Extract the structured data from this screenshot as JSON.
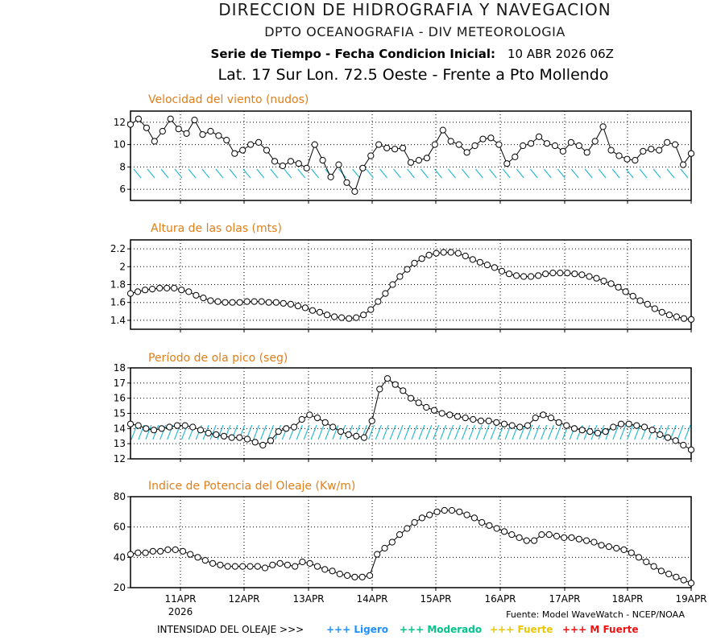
{
  "header": {
    "line1": "DIRECCION DE HIDROGRAFIA Y NAVEGACION",
    "line2": "DPTO OCEANOGRAFIA - DIV METEOROLOGIA",
    "line3_label": "Serie de Tiempo - Fecha Condicion Inicial:",
    "line3_date": "10 ABR 2026 06Z",
    "line4": "Lat. 17 Sur  Lon. 72.5 Oeste - Frente a Pto Mollendo"
  },
  "colors": {
    "title_orange": "#e07f1a",
    "date_blue": "#1f4fe0",
    "arrow_cyan": "#22b8d0",
    "ligero": "#1e90ff",
    "moderado": "#00c48a",
    "fuerte": "#e8c800",
    "mfuerte": "#ee1111"
  },
  "footer": {
    "source": "Fuente: Model WaveWatch - NCEP/NOAA",
    "legend_label": "INTENSIDAD DEL OLEAJE >>>",
    "legend_items": [
      "+++ Ligero",
      "+++ Moderado",
      "+++ Fuerte",
      "+++ M Fuerte"
    ]
  },
  "chart_data": [
    {
      "type": "line",
      "title": "Velocidad del viento (nudos)",
      "x_tick_labels": [
        "11APR",
        "12APR",
        "13APR",
        "14APR",
        "15APR",
        "16APR",
        "17APR",
        "18APR",
        "19APR"
      ],
      "x_year_label": "2026",
      "ylim": [
        5,
        13
      ],
      "y_ticks": [
        6,
        8,
        10,
        12
      ],
      "values": [
        11.8,
        12.3,
        11.5,
        10.3,
        11.2,
        12.3,
        11.4,
        11.0,
        12.2,
        10.9,
        11.2,
        10.8,
        10.4,
        9.2,
        9.5,
        10.0,
        10.2,
        9.5,
        8.5,
        8.1,
        8.5,
        8.3,
        7.9,
        10.0,
        8.6,
        7.1,
        8.2,
        6.6,
        5.8,
        7.9,
        9.0,
        10.0,
        9.7,
        9.6,
        9.7,
        8.4,
        8.6,
        8.8,
        10.0,
        11.3,
        10.3,
        10.0,
        9.3,
        9.9,
        10.5,
        10.6,
        10.0,
        8.3,
        8.9,
        9.9,
        10.1,
        10.7,
        10.1,
        9.9,
        9.4,
        10.2,
        9.9,
        9.3,
        10.3,
        11.6,
        9.5,
        9.0,
        8.7,
        8.6,
        9.4,
        9.6,
        9.5,
        10.2,
        10.0,
        8.2,
        9.2
      ],
      "grid": true
    },
    {
      "type": "line",
      "title": "Altura de las olas (mts)",
      "x_tick_labels": [
        "11APR",
        "12APR",
        "13APR",
        "14APR",
        "15APR",
        "16APR",
        "17APR",
        "18APR",
        "19APR"
      ],
      "ylim": [
        1.3,
        2.3
      ],
      "y_ticks": [
        1.4,
        1.6,
        1.8,
        2.0,
        2.2
      ],
      "values": [
        1.7,
        1.72,
        1.74,
        1.75,
        1.76,
        1.76,
        1.76,
        1.74,
        1.72,
        1.68,
        1.65,
        1.62,
        1.61,
        1.6,
        1.6,
        1.6,
        1.61,
        1.61,
        1.61,
        1.6,
        1.6,
        1.59,
        1.58,
        1.56,
        1.54,
        1.51,
        1.49,
        1.46,
        1.44,
        1.43,
        1.42,
        1.43,
        1.46,
        1.52,
        1.61,
        1.7,
        1.8,
        1.89,
        1.97,
        2.04,
        2.09,
        2.13,
        2.15,
        2.16,
        2.16,
        2.15,
        2.12,
        2.08,
        2.05,
        2.02,
        1.99,
        1.95,
        1.92,
        1.9,
        1.89,
        1.89,
        1.9,
        1.92,
        1.93,
        1.93,
        1.93,
        1.92,
        1.91,
        1.89,
        1.87,
        1.84,
        1.81,
        1.77,
        1.72,
        1.67,
        1.62,
        1.58,
        1.53,
        1.49,
        1.46,
        1.44,
        1.42,
        1.41
      ],
      "grid": true
    },
    {
      "type": "line",
      "title": "Período de ola pico (seg)",
      "x_tick_labels": [
        "11APR",
        "12APR",
        "13APR",
        "14APR",
        "15APR",
        "16APR",
        "17APR",
        "18APR",
        "19APR"
      ],
      "ylim": [
        12,
        18
      ],
      "y_ticks": [
        12,
        13,
        14,
        15,
        16,
        17,
        18
      ],
      "values": [
        14.3,
        14.2,
        14.0,
        13.9,
        14.0,
        14.1,
        14.2,
        14.2,
        14.1,
        13.9,
        13.7,
        13.6,
        13.5,
        13.4,
        13.4,
        13.3,
        13.1,
        12.9,
        13.2,
        13.8,
        14.0,
        14.1,
        14.6,
        14.9,
        14.7,
        14.4,
        14.1,
        13.8,
        13.6,
        13.5,
        13.4,
        14.5,
        16.6,
        17.3,
        16.9,
        16.5,
        16.0,
        15.7,
        15.4,
        15.2,
        15.0,
        14.9,
        14.8,
        14.7,
        14.6,
        14.5,
        14.5,
        14.4,
        14.3,
        14.2,
        14.1,
        14.2,
        14.7,
        14.9,
        14.7,
        14.4,
        14.2,
        14.0,
        13.9,
        13.8,
        13.7,
        13.8,
        14.1,
        14.3,
        14.3,
        14.2,
        14.1,
        13.9,
        13.6,
        13.4,
        13.2,
        12.9,
        12.6
      ],
      "grid": true
    },
    {
      "type": "line",
      "title": "Indice de Potencia del Oleaje (Kw/m)",
      "x_tick_labels": [
        "11APR",
        "12APR",
        "13APR",
        "14APR",
        "15APR",
        "16APR",
        "17APR",
        "18APR",
        "19APR"
      ],
      "x_year_label": "2026",
      "ylim": [
        20,
        80
      ],
      "y_ticks": [
        20,
        40,
        60,
        80
      ],
      "values": [
        42,
        43,
        43,
        44,
        44,
        45,
        45,
        44,
        42,
        40,
        38,
        36,
        35,
        34,
        34,
        34,
        34,
        34,
        33,
        35,
        36,
        35,
        34,
        37,
        36,
        34,
        32,
        31,
        29,
        28,
        27,
        27,
        28,
        42,
        46,
        50,
        55,
        59,
        63,
        66,
        68,
        70,
        71,
        71,
        70,
        68,
        66,
        63,
        61,
        59,
        57,
        55,
        53,
        51,
        51,
        55,
        55,
        54,
        53,
        53,
        52,
        51,
        50,
        48,
        47,
        46,
        45,
        43,
        40,
        37,
        34,
        31,
        29,
        27,
        25,
        23
      ],
      "grid": true
    }
  ]
}
